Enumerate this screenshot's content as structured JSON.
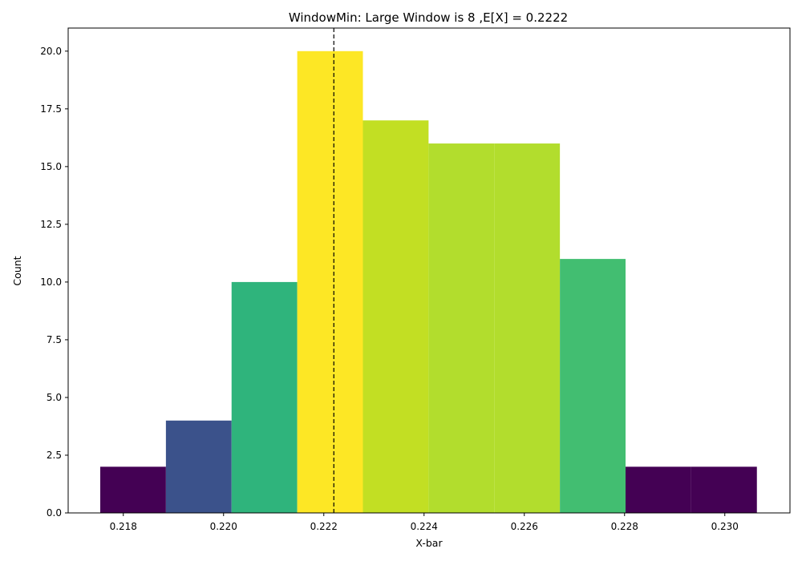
{
  "chart_data": {
    "type": "bar",
    "title": "WindowMin: Large Window is 8 ,E[X] = 0.2222",
    "xlabel": "X-bar",
    "ylabel": "Count",
    "xlim": [
      0.2169,
      0.2313
    ],
    "ylim": [
      0,
      21
    ],
    "grid": false,
    "legend": "none",
    "bins": [
      {
        "x0": 0.21754,
        "x1": 0.21885,
        "count": 2,
        "color": "#440154"
      },
      {
        "x0": 0.21885,
        "x1": 0.22016,
        "count": 4,
        "color": "#3b528b"
      },
      {
        "x0": 0.22016,
        "x1": 0.22147,
        "count": 10,
        "color": "#2fb47c"
      },
      {
        "x0": 0.22147,
        "x1": 0.22278,
        "count": 20,
        "color": "#fde725"
      },
      {
        "x0": 0.22278,
        "x1": 0.22409,
        "count": 17,
        "color": "#c2df23"
      },
      {
        "x0": 0.22409,
        "x1": 0.2254,
        "count": 16,
        "color": "#b2dd2d"
      },
      {
        "x0": 0.2254,
        "x1": 0.22671,
        "count": 16,
        "color": "#b2dd2d"
      },
      {
        "x0": 0.22671,
        "x1": 0.22802,
        "count": 11,
        "color": "#42be71"
      },
      {
        "x0": 0.22802,
        "x1": 0.22933,
        "count": 2,
        "color": "#440154"
      },
      {
        "x0": 0.22933,
        "x1": 0.23064,
        "count": 2,
        "color": "#440154"
      }
    ],
    "mean_line": 0.2222,
    "x_ticks": [
      0.218,
      0.22,
      0.222,
      0.224,
      0.226,
      0.228,
      0.23
    ],
    "x_tick_labels": [
      "0.218",
      "0.220",
      "0.222",
      "0.224",
      "0.226",
      "0.228",
      "0.230"
    ],
    "y_ticks": [
      0,
      2.5,
      5,
      7.5,
      10,
      12.5,
      15,
      17.5,
      20
    ],
    "y_tick_labels": [
      "0.0",
      "2.5",
      "5.0",
      "7.5",
      "10.0",
      "12.5",
      "15.0",
      "17.5",
      "20.0"
    ]
  }
}
